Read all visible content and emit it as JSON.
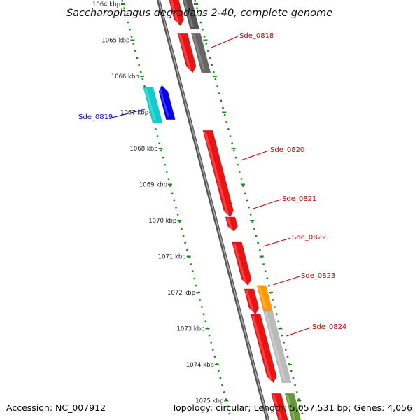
{
  "title": "Saccharophagus degradans 2-40, complete genome",
  "footer": {
    "accession": "Accession: NC_007912",
    "summary": "Topology: circular; Length: 5,057,531 bp; Genes: 4,056"
  },
  "colors": {
    "backbone": "#777777",
    "tick": "#1a8a1a",
    "label_forward": "#cc0000",
    "label_reverse": "#0000bb"
  },
  "ticks": [
    {
      "kbp": 1064,
      "label": "1064 kbp"
    },
    {
      "kbp": 1065,
      "label": "1065 kbp"
    },
    {
      "kbp": 1066,
      "label": "1066 kbp"
    },
    {
      "kbp": 1067,
      "label": "1067 kbp"
    },
    {
      "kbp": 1068,
      "label": "1068 kbp"
    },
    {
      "kbp": 1069,
      "label": "1069 kbp"
    },
    {
      "kbp": 1070,
      "label": "1070 kbp"
    },
    {
      "kbp": 1071,
      "label": "1071 kbp"
    },
    {
      "kbp": 1072,
      "label": "1072 kbp"
    },
    {
      "kbp": 1073,
      "label": "1073 kbp"
    },
    {
      "kbp": 1074,
      "label": "1074 kbp"
    },
    {
      "kbp": 1075,
      "label": "1075 kbp"
    }
  ],
  "genes": [
    {
      "name": "",
      "start": 1063.7,
      "end": 1064.6,
      "strand": "+",
      "lane": "inner",
      "color": "#ee1111",
      "arrow": true
    },
    {
      "name": "",
      "start": 1063.7,
      "end": 1064.7,
      "strand": "+",
      "lane": "outer",
      "color": "#555555",
      "arrow": false
    },
    {
      "name": "",
      "start": 1064.8,
      "end": 1065.9,
      "strand": "+",
      "lane": "inner",
      "color": "#ee1111",
      "arrow": true
    },
    {
      "name": "Sde_0818",
      "start": 1064.8,
      "end": 1065.9,
      "strand": "+",
      "lane": "outer",
      "color": "#666666",
      "arrow": false,
      "labelled": true
    },
    {
      "name": "",
      "start": 1066.3,
      "end": 1067.3,
      "strand": "-",
      "lane": "rev_outer",
      "color": "#11cccc",
      "arrow": false
    },
    {
      "name": "Sde_0819",
      "start": 1066.25,
      "end": 1067.2,
      "strand": "-",
      "lane": "rev_inner",
      "color": "#0000ee",
      "arrow": true,
      "labelled": true
    },
    {
      "name": "Sde_0820",
      "start": 1067.5,
      "end": 1069.9,
      "strand": "+",
      "lane": "inner",
      "color": "#ee1111",
      "arrow": true,
      "labelled": true
    },
    {
      "name": "Sde_0821",
      "start": 1069.9,
      "end": 1070.3,
      "strand": "+",
      "lane": "inner",
      "color": "#ee1111",
      "arrow": true,
      "labelled": true
    },
    {
      "name": "Sde_0822",
      "start": 1070.6,
      "end": 1071.8,
      "strand": "+",
      "lane": "inner",
      "color": "#ee1111",
      "arrow": true,
      "labelled": true
    },
    {
      "name": "",
      "start": 1071.9,
      "end": 1072.6,
      "strand": "+",
      "lane": "inner",
      "color": "#ee1111",
      "arrow": true
    },
    {
      "name": "Sde_0823",
      "start": 1071.8,
      "end": 1072.5,
      "strand": "+",
      "lane": "outer",
      "color": "#ff9900",
      "arrow": false,
      "labelled": true
    },
    {
      "name": "",
      "start": 1072.6,
      "end": 1074.5,
      "strand": "+",
      "lane": "inner",
      "color": "#ee1111",
      "arrow": true
    },
    {
      "name": "Sde_0824",
      "start": 1072.5,
      "end": 1074.5,
      "strand": "+",
      "lane": "outer",
      "color": "#bbbbbb",
      "arrow": false,
      "labelled": true
    },
    {
      "name": "",
      "start": 1074.8,
      "end": 1075.6,
      "strand": "+",
      "lane": "inner",
      "color": "#ee1111",
      "arrow": false
    },
    {
      "name": "",
      "start": 1074.8,
      "end": 1075.6,
      "strand": "+",
      "lane": "outer",
      "color": "#669933",
      "arrow": false
    }
  ]
}
